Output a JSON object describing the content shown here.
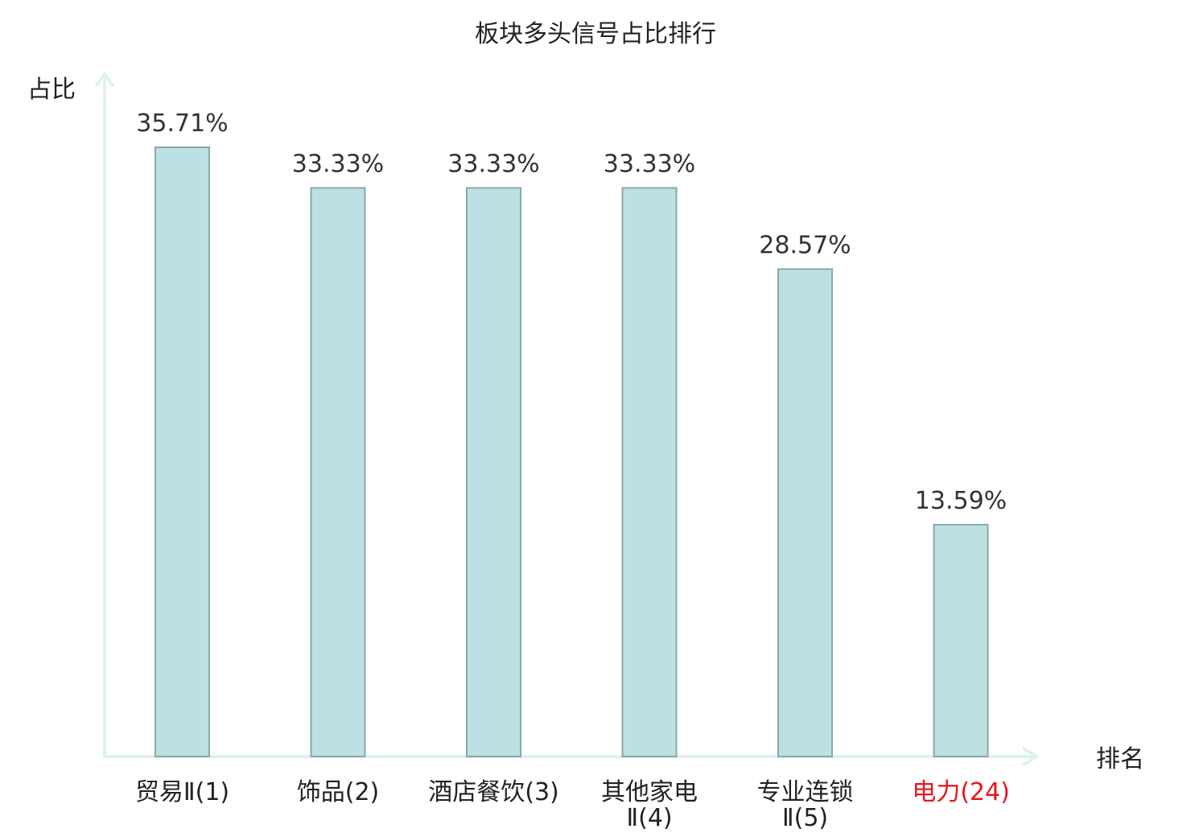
{
  "chart_data": {
    "type": "bar",
    "title": "板块多头信号占比排行",
    "ylabel": "占比",
    "xlabel": "排名",
    "categories": [
      {
        "name": "贸易Ⅱ",
        "rank": "(1)"
      },
      {
        "name": "饰品",
        "rank": "(2)"
      },
      {
        "name": "酒店餐饮",
        "rank": "(3)"
      },
      {
        "name": "其他家电Ⅱ",
        "rank": "(4)"
      },
      {
        "name": "专业连锁Ⅱ",
        "rank": "(5)"
      },
      {
        "name": "电力",
        "rank": "(24)",
        "highlight": true
      }
    ],
    "values": [
      35.71,
      33.33,
      33.33,
      33.33,
      28.57,
      13.59
    ],
    "value_labels": [
      "35.71%",
      "33.33%",
      "33.33%",
      "33.33%",
      "28.57%",
      "13.59%"
    ],
    "ylim": [
      0,
      35.71
    ],
    "grid": false,
    "legend": "none",
    "colors": {
      "bar_fill": "#bde0e2",
      "bar_stroke": "#8aa8aa",
      "axis": "#e0f2ef",
      "text": "#222222",
      "value_label": "#333333",
      "highlight": "#e8141c"
    }
  }
}
